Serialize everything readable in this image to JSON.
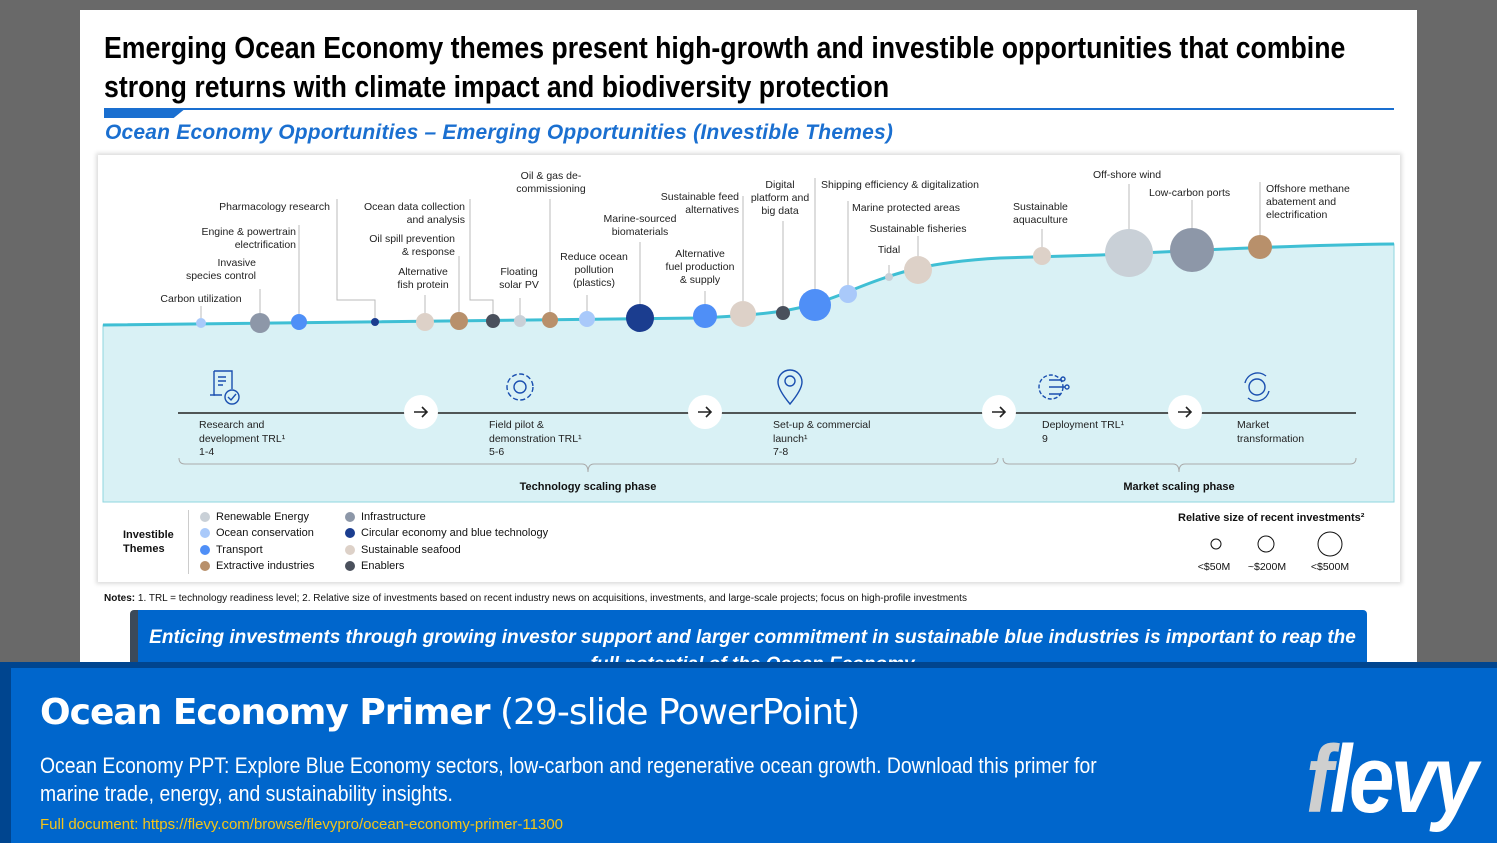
{
  "header": {
    "title_lines": [
      "Emerging Ocean Economy themes present high-growth and investible opportunities that combine",
      "strong returns with climate impact and biodiversity protection"
    ],
    "subtitle": "Ocean Economy Opportunities – Emerging Opportunities (Investible Themes)"
  },
  "themes": [
    {
      "name": "Renewable Energy",
      "color": "#c9d0d7"
    },
    {
      "name": "Ocean conservation",
      "color": "#a9c9fa"
    },
    {
      "name": "Transport",
      "color": "#4f8ff7"
    },
    {
      "name": "Extractive industries",
      "color": "#b8906b"
    },
    {
      "name": "Infrastructure",
      "color": "#8d97a8"
    },
    {
      "name": "Circular economy and blue technology",
      "color": "#1b3d8f"
    },
    {
      "name": "Sustainable seafood",
      "color": "#ddd1c8"
    },
    {
      "name": "Enablers",
      "color": "#4a505c"
    }
  ],
  "opportunities": [
    {
      "label": "Carbon utilization",
      "theme": 1
    },
    {
      "label": "Invasive\nspecies control",
      "theme": 4
    },
    {
      "label": "Engine & powertrain\nelectrification",
      "theme": 2
    },
    {
      "label": "Pharmacology research",
      "theme": 5
    },
    {
      "label": "Alternative\nfish protein",
      "theme": 6
    },
    {
      "label": "Oil spill prevention\n& response",
      "theme": 3
    },
    {
      "label": "Ocean data collection\nand analysis",
      "theme": 7
    },
    {
      "label": "Floating\nsolar PV",
      "theme": 0
    },
    {
      "label": "Oil & gas de-\ncommissioning",
      "theme": 3
    },
    {
      "label": "Reduce ocean\npollution\n(plastics)",
      "theme": 1
    },
    {
      "label": "Marine-sourced\nbiomaterials",
      "theme": 5
    },
    {
      "label": "Alternative\nfuel production\n& supply",
      "theme": 2
    },
    {
      "label": "Sustainable feed\nalternatives",
      "theme": 6
    },
    {
      "label": "Digital\nplatform and\nbig data",
      "theme": 7
    },
    {
      "label": "Shipping efficiency & digitalization",
      "theme": 2
    },
    {
      "label": "Marine protected areas",
      "theme": 1
    },
    {
      "label": "Tidal",
      "theme": 0
    },
    {
      "label": "Sustainable fisheries",
      "theme": 6
    },
    {
      "label": "Sustainable\naquaculture",
      "theme": 6
    },
    {
      "label": "Off-shore wind",
      "theme": 0
    },
    {
      "label": "Low-carbon ports",
      "theme": 4
    },
    {
      "label": "Offshore methane\nabatement and\nelectrification",
      "theme": 3
    }
  ],
  "stages": [
    {
      "label": "Research and\ndevelopment TRL¹\n1-4",
      "icon": "document-check-icon"
    },
    {
      "label": "Field pilot &\ndemonstration TRL¹\n5-6",
      "icon": "gear-icon"
    },
    {
      "label": "Set-up & commercial\nlaunch¹\n7-8",
      "icon": "map-pin-icon"
    },
    {
      "label": "Deployment TRL¹\n9",
      "icon": "digital-gear-icon"
    },
    {
      "label": "Market\ntransformation",
      "icon": "cycle-icon"
    }
  ],
  "phases": [
    "Technology scaling phase",
    "Market scaling phase"
  ],
  "legend": {
    "title": "Investible\nThemes",
    "sizes_title": "Relative size of recent investments²",
    "sizes": [
      "<$50M",
      "~$200M",
      "<$500M"
    ]
  },
  "notes_label": "Notes:",
  "notes": "1. TRL = technology readiness level; 2. Relative size of investments based on recent industry news on acquisitions, investments, and large-scale projects; focus on high-profile investments",
  "callout": "Enticing investments through growing investor support and larger commitment in sustainable blue industries is important to reap the full potential of the Ocean Economy",
  "banner": {
    "title": "Ocean Economy Primer",
    "title_suffix": "(29-slide PowerPoint)",
    "description": "Ocean Economy PPT: Explore Blue Economy sectors, low-carbon and regenerative ocean growth. Download this primer for marine trade, energy, and sustainability insights.",
    "link": "Full document: https://flevy.com/browse/flevypro/ocean-economy-primer-11300",
    "logo": "flevy"
  }
}
